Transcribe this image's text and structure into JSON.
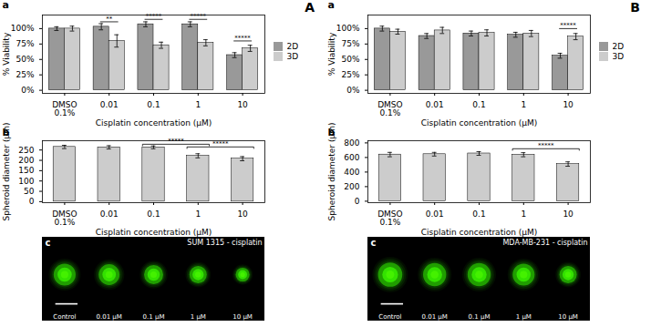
{
  "chart_data": [
    {
      "type": "bar",
      "title": "A",
      "categories": [
        "DMSO\n0.1%",
        "0.01",
        "0.1",
        "1",
        "10"
      ],
      "series": [
        {
          "name": "2D",
          "color": "#999999",
          "values": [
            100,
            103,
            107,
            107,
            57
          ],
          "errors": [
            3,
            5,
            4,
            4,
            4
          ]
        },
        {
          "name": "3D",
          "color": "#cccccc",
          "values": [
            100,
            80,
            73,
            77,
            68
          ],
          "errors": [
            4,
            10,
            5,
            5,
            5
          ]
        }
      ],
      "xlabel": "Cisplatin concentration (μM)",
      "ylabel": "% Viability",
      "ylim": [
        -5,
        122
      ],
      "yticks": [
        {
          "value": 0,
          "label": "0%"
        },
        {
          "value": 25,
          "label": "25%"
        },
        {
          "value": 50,
          "label": "50%"
        },
        {
          "value": 75,
          "label": "75%"
        },
        {
          "value": 100,
          "label": "100%"
        }
      ],
      "legend": "right",
      "annotations": [
        {
          "text": "a"
        },
        {
          "from": "0.01",
          "to": "0.01",
          "y": 111,
          "text": "**"
        },
        {
          "from": "0.1",
          "to": "0.1",
          "y": 115,
          "text": "*****"
        },
        {
          "from": "1",
          "to": "1",
          "y": 115,
          "text": "*****"
        },
        {
          "from": "10",
          "to": "10",
          "y": 80,
          "text": "*****"
        }
      ]
    },
    {
      "type": "bar",
      "categories": [
        "DMSO\n0.1%",
        "0.01",
        "0.1",
        "1",
        "10"
      ],
      "values": [
        265,
        263,
        263,
        222,
        208
      ],
      "errors": [
        8,
        8,
        7,
        10,
        10
      ],
      "color": "#cccccc",
      "xlabel": "Cisplatin concentration (μM)",
      "ylabel": "Spheroid diameter (μm)",
      "ylim": [
        -5,
        295
      ],
      "yticks": [
        0,
        50,
        100,
        150,
        200,
        250
      ],
      "annotations": [
        {
          "text": "b"
        },
        {
          "from": "0.1",
          "to": "1",
          "y": 278,
          "text": "*****"
        },
        {
          "from": "1",
          "to": "10",
          "y": 265,
          "text": "*****"
        }
      ]
    },
    {
      "type": "bubble",
      "title": "SUM 1315 - cisplatin",
      "categories": [
        "Control",
        "0.01 μM",
        "0.1 μM",
        "1 μM",
        "10 μM"
      ],
      "sizes": [
        0.38,
        0.36,
        0.33,
        0.3,
        0.24
      ],
      "color": "#22aa00",
      "tick_labels": false,
      "annotations": [
        {
          "text": "c"
        }
      ]
    },
    {
      "type": "bar",
      "title": "B",
      "categories": [
        "DMSO\n0.1%",
        "0.01",
        "0.1",
        "1",
        "10"
      ],
      "series": [
        {
          "name": "2D",
          "color": "#999999",
          "values": [
            100,
            88,
            92,
            90,
            56
          ],
          "errors": [
            4,
            4,
            4,
            4,
            4
          ]
        },
        {
          "name": "3D",
          "color": "#cccccc",
          "values": [
            95,
            97,
            93,
            92,
            87
          ],
          "errors": [
            4,
            5,
            5,
            5,
            5
          ]
        }
      ],
      "xlabel": "Cisplatin concentration (μM)",
      "ylabel": "% Viability",
      "ylim": [
        -5,
        122
      ],
      "yticks": [
        {
          "value": 0,
          "label": "0%"
        },
        {
          "value": 25,
          "label": "25%"
        },
        {
          "value": 50,
          "label": "50%"
        },
        {
          "value": 75,
          "label": "75%"
        },
        {
          "value": 100,
          "label": "100%"
        }
      ],
      "legend": "right",
      "annotations": [
        {
          "text": "a"
        },
        {
          "from": "10",
          "to": "10",
          "y": 100,
          "text": "*****"
        }
      ]
    },
    {
      "type": "bar",
      "categories": [
        "DMSO\n0.1%",
        "0.01",
        "0.1",
        "1",
        "10"
      ],
      "values": [
        640,
        645,
        655,
        638,
        510
      ],
      "errors": [
        30,
        25,
        25,
        28,
        30
      ],
      "color": "#cccccc",
      "xlabel": "Cisplatin concentration (μM)",
      "ylabel": "Spheroid diameter (μm)",
      "ylim": [
        -20,
        830
      ],
      "yticks": [
        0,
        200,
        400,
        600,
        800
      ],
      "annotations": [
        {
          "text": "b"
        },
        {
          "from": "1",
          "to": "10",
          "y": 720,
          "text": "*****"
        }
      ]
    },
    {
      "type": "bubble",
      "title": "MDA-MB-231 - cisplatin",
      "categories": [
        "Control",
        "0.01 μM",
        "0.1 μM",
        "1 μM",
        "10 μM"
      ],
      "sizes": [
        0.42,
        0.4,
        0.4,
        0.38,
        0.3
      ],
      "color": "#22aa00",
      "tick_labels": false,
      "annotations": [
        {
          "text": "c"
        }
      ]
    }
  ]
}
